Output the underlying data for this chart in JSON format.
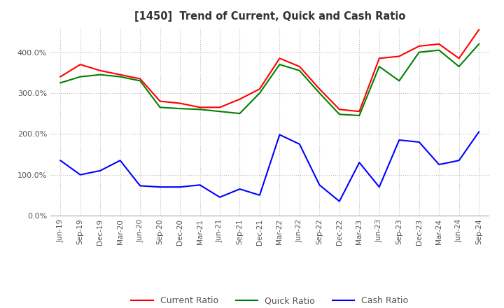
{
  "title": "[1450]  Trend of Current, Quick and Cash Ratio",
  "labels": [
    "Jun-19",
    "Sep-19",
    "Dec-19",
    "Mar-20",
    "Jun-20",
    "Sep-20",
    "Dec-20",
    "Mar-21",
    "Jun-21",
    "Sep-21",
    "Dec-21",
    "Mar-22",
    "Jun-22",
    "Sep-22",
    "Dec-22",
    "Mar-23",
    "Jun-23",
    "Sep-23",
    "Dec-23",
    "Mar-24",
    "Jun-24",
    "Sep-24"
  ],
  "current_ratio": [
    340,
    370,
    355,
    345,
    335,
    280,
    275,
    265,
    265,
    285,
    310,
    385,
    365,
    310,
    260,
    255,
    385,
    390,
    415,
    420,
    385,
    455
  ],
  "quick_ratio": [
    325,
    340,
    345,
    340,
    330,
    265,
    262,
    260,
    255,
    250,
    300,
    370,
    355,
    300,
    248,
    245,
    365,
    330,
    400,
    405,
    365,
    420
  ],
  "cash_ratio": [
    135,
    100,
    110,
    135,
    73,
    70,
    70,
    75,
    45,
    65,
    50,
    198,
    175,
    75,
    35,
    130,
    70,
    185,
    180,
    125,
    135,
    205
  ],
  "current_color": "#FF0000",
  "quick_color": "#008000",
  "cash_color": "#0000FF",
  "ylim": [
    0,
    460
  ],
  "yticks": [
    0,
    100,
    200,
    300,
    400
  ],
  "background_color": "#FFFFFF",
  "grid_color": "#BBBBBB",
  "title_color": "#333333",
  "tick_color": "#555555"
}
